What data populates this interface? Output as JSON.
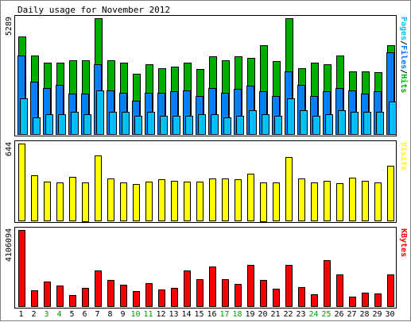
{
  "chart_data": {
    "type": "bar",
    "title": "Daily usage for November 2012",
    "categories": [
      "1",
      "2",
      "3",
      "4",
      "5",
      "6",
      "7",
      "8",
      "9",
      "10",
      "11",
      "12",
      "13",
      "14",
      "15",
      "16",
      "17",
      "18",
      "19",
      "20",
      "21",
      "22",
      "23",
      "24",
      "25",
      "26",
      "27",
      "28",
      "29",
      "30"
    ],
    "weekend_days": [
      "3",
      "4",
      "10",
      "11",
      "17",
      "18",
      "24",
      "25"
    ],
    "panels": [
      {
        "id": "hits",
        "y_max_label": "5289",
        "ylim": [
          0,
          5289
        ],
        "legend": [
          "Pages",
          "/",
          "Files",
          "/",
          "Hits"
        ],
        "series": [
          {
            "name": "Hits",
            "color": "#00b000",
            "values": [
              4439,
              3584,
              3277,
              3277,
              3379,
              3379,
              5289,
              3379,
              3277,
              2765,
              3174,
              3021,
              3072,
              3277,
              2970,
              3533,
              3379,
              3533,
              3482,
              4045,
              3328,
              5289,
              3021,
              3277,
              3174,
              3584,
              2867,
              2867,
              2816,
              4045
            ]
          },
          {
            "name": "Files",
            "color": "#0080ff",
            "values": [
              3584,
              2406,
              2099,
              2253,
              1843,
              1843,
              3174,
              1997,
              1894,
              1536,
              1894,
              1894,
              1946,
              1997,
              1741,
              2099,
              1894,
              2048,
              2202,
              1946,
              1741,
              2867,
              2253,
              1741,
              1946,
              2099,
              1997,
              1843,
              1946,
              3738
            ]
          },
          {
            "name": "Pages",
            "color": "#00c0ff",
            "values": [
              1638,
              768,
              922,
              922,
              1024,
              922,
              1997,
              1024,
              1024,
              819,
              1024,
              819,
              819,
              819,
              922,
              922,
              768,
              819,
              1075,
              922,
              819,
              1638,
              1075,
              819,
              922,
              1075,
              1024,
              1024,
              1024,
              1485
            ]
          }
        ]
      },
      {
        "id": "visits",
        "y_max_label": "644",
        "ylim": [
          0,
          644
        ],
        "legend": [
          "Visits"
        ],
        "series": [
          {
            "name": "Visits",
            "color": "#ffff00",
            "values": [
              644,
              378,
              325,
              317,
              362,
              322,
              546,
              353,
              317,
              305,
              325,
              346,
              332,
              328,
              326,
              349,
              349,
              342,
              394,
              322,
              320,
              534,
              349,
              319,
              329,
              312,
              356,
              332,
              318,
              457
            ]
          }
        ]
      },
      {
        "id": "kbytes",
        "y_max_label": "4106094",
        "ylim": [
          0,
          4106094
        ],
        "legend": [
          "KBytes"
        ],
        "series": [
          {
            "name": "KBytes",
            "color": "#ff0000",
            "values": [
              4106094,
              863246,
              1325370,
              1126460,
              589624,
              990128,
              1936470,
              1397838,
              1155020,
              818210,
              1241980,
              912650,
              982400,
              1905000,
              1444000,
              2150000,
              1463000,
              1210000,
              2231000,
              1393000,
              923000,
              2215000,
              1010000,
              640000,
              2466000,
              1710000,
              510000,
              728000,
              690000,
              1731000
            ]
          }
        ]
      }
    ]
  }
}
